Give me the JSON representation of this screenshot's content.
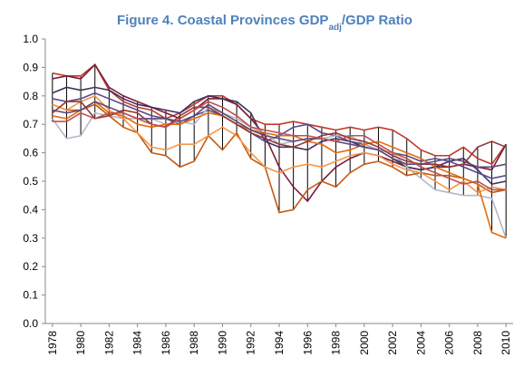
{
  "chart_data": {
    "type": "line",
    "title": [
      "Figure 4. Coastal Provinces GDP",
      "adj",
      "/GDP Ratio"
    ],
    "x": [
      1978,
      1979,
      1980,
      1981,
      1982,
      1983,
      1984,
      1985,
      1986,
      1987,
      1988,
      1989,
      1990,
      1991,
      1992,
      1993,
      1994,
      1995,
      1996,
      1997,
      1998,
      1999,
      2000,
      2001,
      2002,
      2003,
      2004,
      2005,
      2006,
      2007,
      2008,
      2009,
      2010
    ],
    "xlim": [
      1977.5,
      2010.5
    ],
    "xticks": [
      1978,
      1980,
      1982,
      1984,
      1986,
      1988,
      1990,
      1992,
      1994,
      1996,
      1998,
      2000,
      2002,
      2004,
      2006,
      2008,
      2010
    ],
    "ylim": [
      0,
      1
    ],
    "yticks": [
      {
        "value": 0,
        "label": "0.0"
      },
      {
        "value": 0.1,
        "label": "0.1"
      },
      {
        "value": 0.2,
        "label": "0.2"
      },
      {
        "value": 0.3,
        "label": "0.3"
      },
      {
        "value": 0.4,
        "label": "0.4"
      },
      {
        "value": 0.5,
        "label": "0.5"
      },
      {
        "value": 0.6,
        "label": "0.6"
      },
      {
        "value": 0.7,
        "label": "0.7"
      },
      {
        "value": 0.8,
        "label": "0.8"
      },
      {
        "value": 0.9,
        "label": "0.9"
      },
      {
        "value": 1,
        "label": "1.0"
      }
    ],
    "high_low_lines": true,
    "series": [
      {
        "color": "#c0392b",
        "values": [
          0.88,
          0.87,
          0.87,
          0.91,
          0.82,
          0.78,
          0.76,
          0.75,
          0.72,
          0.74,
          0.77,
          0.8,
          0.8,
          0.77,
          0.72,
          0.7,
          0.7,
          0.71,
          0.7,
          0.69,
          0.68,
          0.69,
          0.68,
          0.69,
          0.68,
          0.65,
          0.61,
          0.59,
          0.59,
          0.62,
          0.58,
          0.56,
          0.63
        ]
      },
      {
        "color": "#7b1f3a",
        "values": [
          0.86,
          0.87,
          0.86,
          0.91,
          0.83,
          0.8,
          0.78,
          0.76,
          0.74,
          0.72,
          0.75,
          0.79,
          0.79,
          0.77,
          0.72,
          0.66,
          0.55,
          0.48,
          0.43,
          0.5,
          0.55,
          0.58,
          0.6,
          0.59,
          0.57,
          0.55,
          0.54,
          0.55,
          0.55,
          0.56,
          0.55,
          0.54,
          0.63
        ]
      },
      {
        "color": "#403060",
        "values": [
          0.81,
          0.83,
          0.82,
          0.83,
          0.82,
          0.79,
          0.77,
          0.76,
          0.75,
          0.74,
          0.78,
          0.8,
          0.79,
          0.78,
          0.74,
          0.64,
          0.62,
          0.62,
          0.61,
          0.64,
          0.65,
          0.64,
          0.62,
          0.61,
          0.58,
          0.55,
          0.54,
          0.55,
          0.57,
          0.58,
          0.54,
          0.49,
          0.5
        ]
      },
      {
        "color": "#5b4a8b",
        "values": [
          0.79,
          0.78,
          0.79,
          0.81,
          0.79,
          0.77,
          0.75,
          0.73,
          0.72,
          0.7,
          0.73,
          0.75,
          0.73,
          0.7,
          0.67,
          0.64,
          0.66,
          0.69,
          0.7,
          0.67,
          0.66,
          0.64,
          0.63,
          0.61,
          0.6,
          0.59,
          0.57,
          0.58,
          0.57,
          0.55,
          0.53,
          0.51,
          0.52
        ]
      },
      {
        "color": "#b7b7c7",
        "values": [
          0.72,
          0.65,
          0.66,
          0.74,
          0.73,
          0.72,
          0.72,
          0.72,
          0.7,
          0.71,
          0.7,
          0.76,
          0.74,
          0.72,
          0.69,
          0.67,
          0.63,
          0.64,
          0.65,
          0.65,
          0.66,
          0.66,
          0.63,
          0.61,
          0.6,
          0.55,
          0.51,
          0.47,
          0.46,
          0.45,
          0.45,
          0.44,
          0.3
        ]
      },
      {
        "color": "#c55a11",
        "values": [
          0.77,
          0.75,
          0.75,
          0.77,
          0.73,
          0.69,
          0.67,
          0.6,
          0.59,
          0.55,
          0.57,
          0.66,
          0.61,
          0.67,
          0.58,
          0.55,
          0.39,
          0.4,
          0.47,
          0.5,
          0.48,
          0.53,
          0.56,
          0.57,
          0.55,
          0.52,
          0.53,
          0.52,
          0.52,
          0.51,
          0.49,
          0.46,
          0.47
        ]
      },
      {
        "color": "#f79646",
        "values": [
          0.77,
          0.75,
          0.78,
          0.8,
          0.75,
          0.72,
          0.67,
          0.62,
          0.61,
          0.63,
          0.63,
          0.66,
          0.69,
          0.66,
          0.6,
          0.55,
          0.53,
          0.55,
          0.56,
          0.55,
          0.57,
          0.59,
          0.6,
          0.59,
          0.56,
          0.54,
          0.53,
          0.5,
          0.47,
          0.5,
          0.46,
          0.48,
          0.47
        ]
      },
      {
        "color": "#e46c0a",
        "values": [
          0.73,
          0.72,
          0.75,
          0.78,
          0.74,
          0.73,
          0.7,
          0.69,
          0.7,
          0.7,
          0.72,
          0.74,
          0.73,
          0.7,
          0.68,
          0.67,
          0.66,
          0.66,
          0.64,
          0.63,
          0.6,
          0.61,
          0.63,
          0.64,
          0.62,
          0.6,
          0.58,
          0.55,
          0.53,
          0.51,
          0.49,
          0.32,
          0.3
        ]
      },
      {
        "color": "#953735",
        "values": [
          0.74,
          0.78,
          0.78,
          0.72,
          0.73,
          0.75,
          0.74,
          0.7,
          0.69,
          0.73,
          0.76,
          0.76,
          0.73,
          0.7,
          0.67,
          0.65,
          0.63,
          0.62,
          0.64,
          0.66,
          0.67,
          0.65,
          0.64,
          0.62,
          0.59,
          0.57,
          0.56,
          0.56,
          0.55,
          0.56,
          0.62,
          0.64,
          0.62
        ]
      },
      {
        "color": "#604a7b",
        "values": [
          0.75,
          0.74,
          0.75,
          0.78,
          0.76,
          0.74,
          0.72,
          0.72,
          0.72,
          0.71,
          0.73,
          0.77,
          0.74,
          0.71,
          0.68,
          0.66,
          0.65,
          0.64,
          0.65,
          0.65,
          0.64,
          0.63,
          0.62,
          0.61,
          0.58,
          0.56,
          0.56,
          0.57,
          0.58,
          0.57,
          0.55,
          0.55,
          0.56
        ]
      },
      {
        "color": "#c0504d",
        "values": [
          0.71,
          0.71,
          0.74,
          0.72,
          0.74,
          0.74,
          0.72,
          0.7,
          0.69,
          0.72,
          0.75,
          0.78,
          0.76,
          0.73,
          0.69,
          0.68,
          0.67,
          0.66,
          0.66,
          0.65,
          0.64,
          0.66,
          0.66,
          0.63,
          0.6,
          0.58,
          0.55,
          0.53,
          0.51,
          0.49,
          0.5,
          0.47,
          0.47
        ]
      }
    ]
  }
}
